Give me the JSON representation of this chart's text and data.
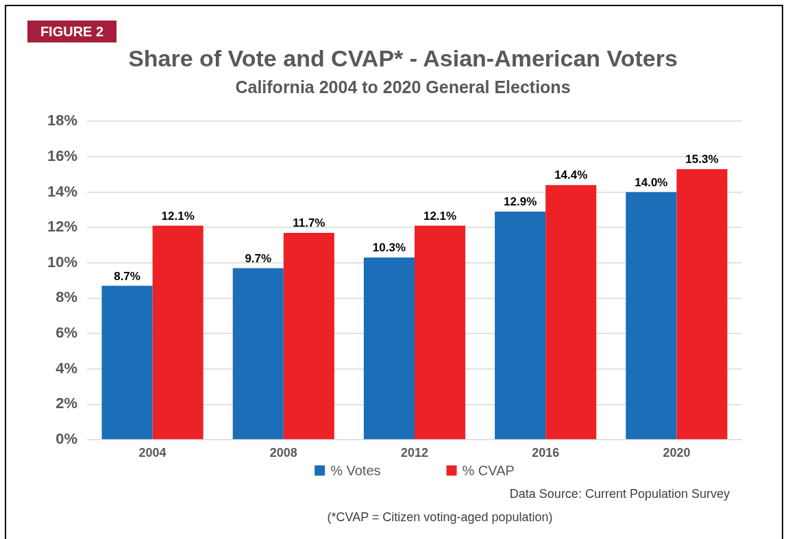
{
  "chart_data": {
    "type": "bar",
    "title": "Share of Vote and CVAP* - Asian-American Voters",
    "subtitle": "California 2004 to 2020 General Elections",
    "categories": [
      "2004",
      "2008",
      "2012",
      "2016",
      "2020"
    ],
    "series": [
      {
        "name": "% Votes",
        "color": "#1b6eb7",
        "values": [
          8.7,
          9.7,
          10.3,
          12.9,
          14.0
        ],
        "value_labels": [
          "8.7%",
          "9.7%",
          "10.3%",
          "12.9%",
          "14.0%"
        ]
      },
      {
        "name": "% CVAP",
        "color": "#ec2227",
        "values": [
          12.1,
          11.7,
          12.1,
          14.4,
          15.3
        ],
        "value_labels": [
          "12.1%",
          "11.7%",
          "12.1%",
          "14.4%",
          "15.3%"
        ]
      }
    ],
    "ylim": [
      0,
      18
    ],
    "yticks": [
      {
        "value": 0,
        "label": "0%"
      },
      {
        "value": 2,
        "label": "2%"
      },
      {
        "value": 4,
        "label": "4%"
      },
      {
        "value": 6,
        "label": "6%"
      },
      {
        "value": 8,
        "label": "8%"
      },
      {
        "value": 10,
        "label": "10%"
      },
      {
        "value": 12,
        "label": "12%"
      },
      {
        "value": 14,
        "label": "14%"
      },
      {
        "value": 16,
        "label": "16%"
      },
      {
        "value": 18,
        "label": "18%"
      }
    ],
    "grid": "y",
    "legend": "bottom",
    "annotations": [
      "FIGURE 2",
      "Data Source: Current Population Survey",
      "(*CVAP = Citizen voting-aged population)"
    ]
  }
}
